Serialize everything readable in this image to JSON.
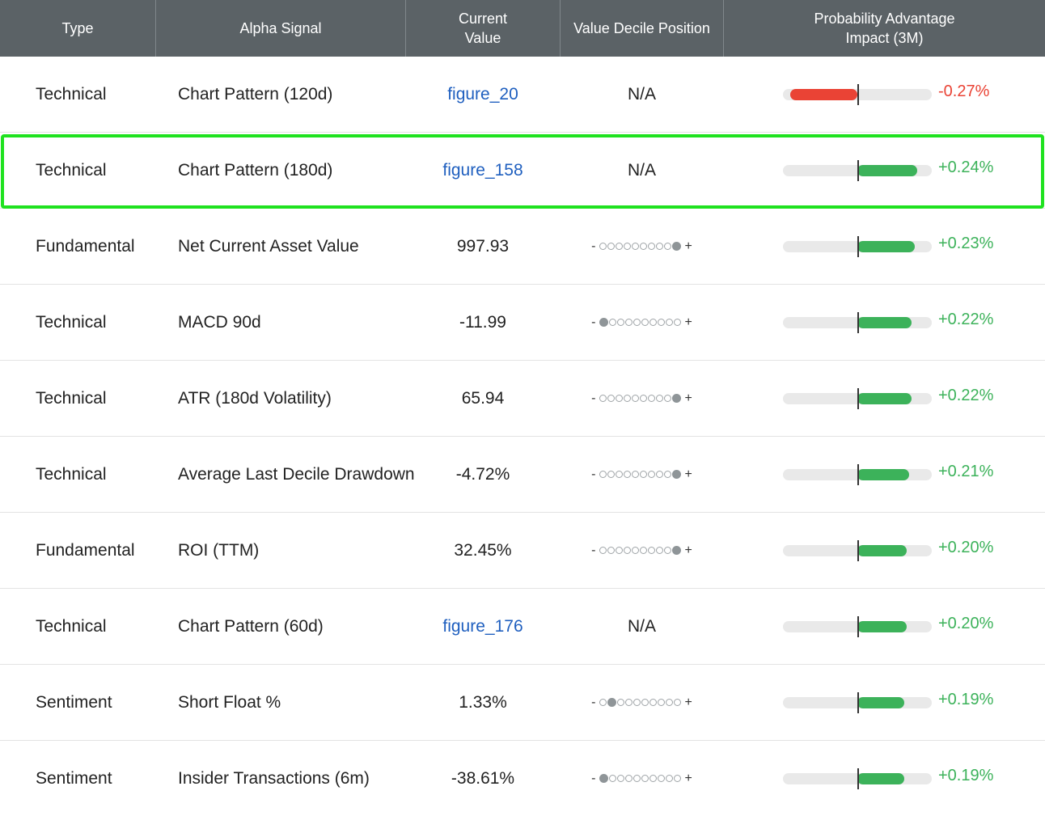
{
  "header": {
    "type": "Type",
    "signal": "Alpha Signal",
    "value_line1": "Current",
    "value_line2": "Value",
    "decile": "Value Decile Position",
    "impact_line1": "Probability Advantage",
    "impact_line2": "Impact (3M)"
  },
  "colors": {
    "positive": "#3cb25a",
    "negative": "#ea4335",
    "link": "#1f5fbf",
    "highlight": "#1fe21f",
    "header_bg": "#5b6266"
  },
  "rows": [
    {
      "type": "Technical",
      "signal": "Chart Pattern (120d)",
      "value": "figure_20",
      "value_is_link": true,
      "decile": null,
      "decile_text": "N/A",
      "impact": -0.27,
      "impact_text": "-0.27%"
    },
    {
      "type": "Technical",
      "signal": "Chart Pattern (180d)",
      "value": "figure_158",
      "value_is_link": true,
      "decile": null,
      "decile_text": "N/A",
      "impact": 0.24,
      "impact_text": "+0.24%",
      "highlighted": true
    },
    {
      "type": "Fundamental",
      "signal": "Net Current Asset Value",
      "value": "997.93",
      "value_is_link": false,
      "decile": 10,
      "impact": 0.23,
      "impact_text": "+0.23%"
    },
    {
      "type": "Technical",
      "signal": "MACD 90d",
      "value": "-11.99",
      "value_is_link": false,
      "decile": 1,
      "impact": 0.22,
      "impact_text": "+0.22%"
    },
    {
      "type": "Technical",
      "signal": "ATR (180d Volatility)",
      "value": "65.94",
      "value_is_link": false,
      "decile": 10,
      "impact": 0.22,
      "impact_text": "+0.22%"
    },
    {
      "type": "Technical",
      "signal": "Average Last Decile Drawdown",
      "value": "-4.72%",
      "value_is_link": false,
      "decile": 10,
      "impact": 0.21,
      "impact_text": "+0.21%"
    },
    {
      "type": "Fundamental",
      "signal": "ROI (TTM)",
      "value": "32.45%",
      "value_is_link": false,
      "decile": 10,
      "impact": 0.2,
      "impact_text": "+0.20%"
    },
    {
      "type": "Technical",
      "signal": "Chart Pattern (60d)",
      "value": "figure_176",
      "value_is_link": true,
      "decile": null,
      "decile_text": "N/A",
      "impact": 0.2,
      "impact_text": "+0.20%"
    },
    {
      "type": "Sentiment",
      "signal": "Short Float %",
      "value": "1.33%",
      "value_is_link": false,
      "decile": 2,
      "impact": 0.19,
      "impact_text": "+0.19%"
    },
    {
      "type": "Sentiment",
      "signal": "Insider Transactions (6m)",
      "value": "-38.61%",
      "value_is_link": false,
      "decile": 1,
      "impact": 0.19,
      "impact_text": "+0.19%"
    }
  ],
  "decile_minus": "-",
  "decile_plus": "+"
}
